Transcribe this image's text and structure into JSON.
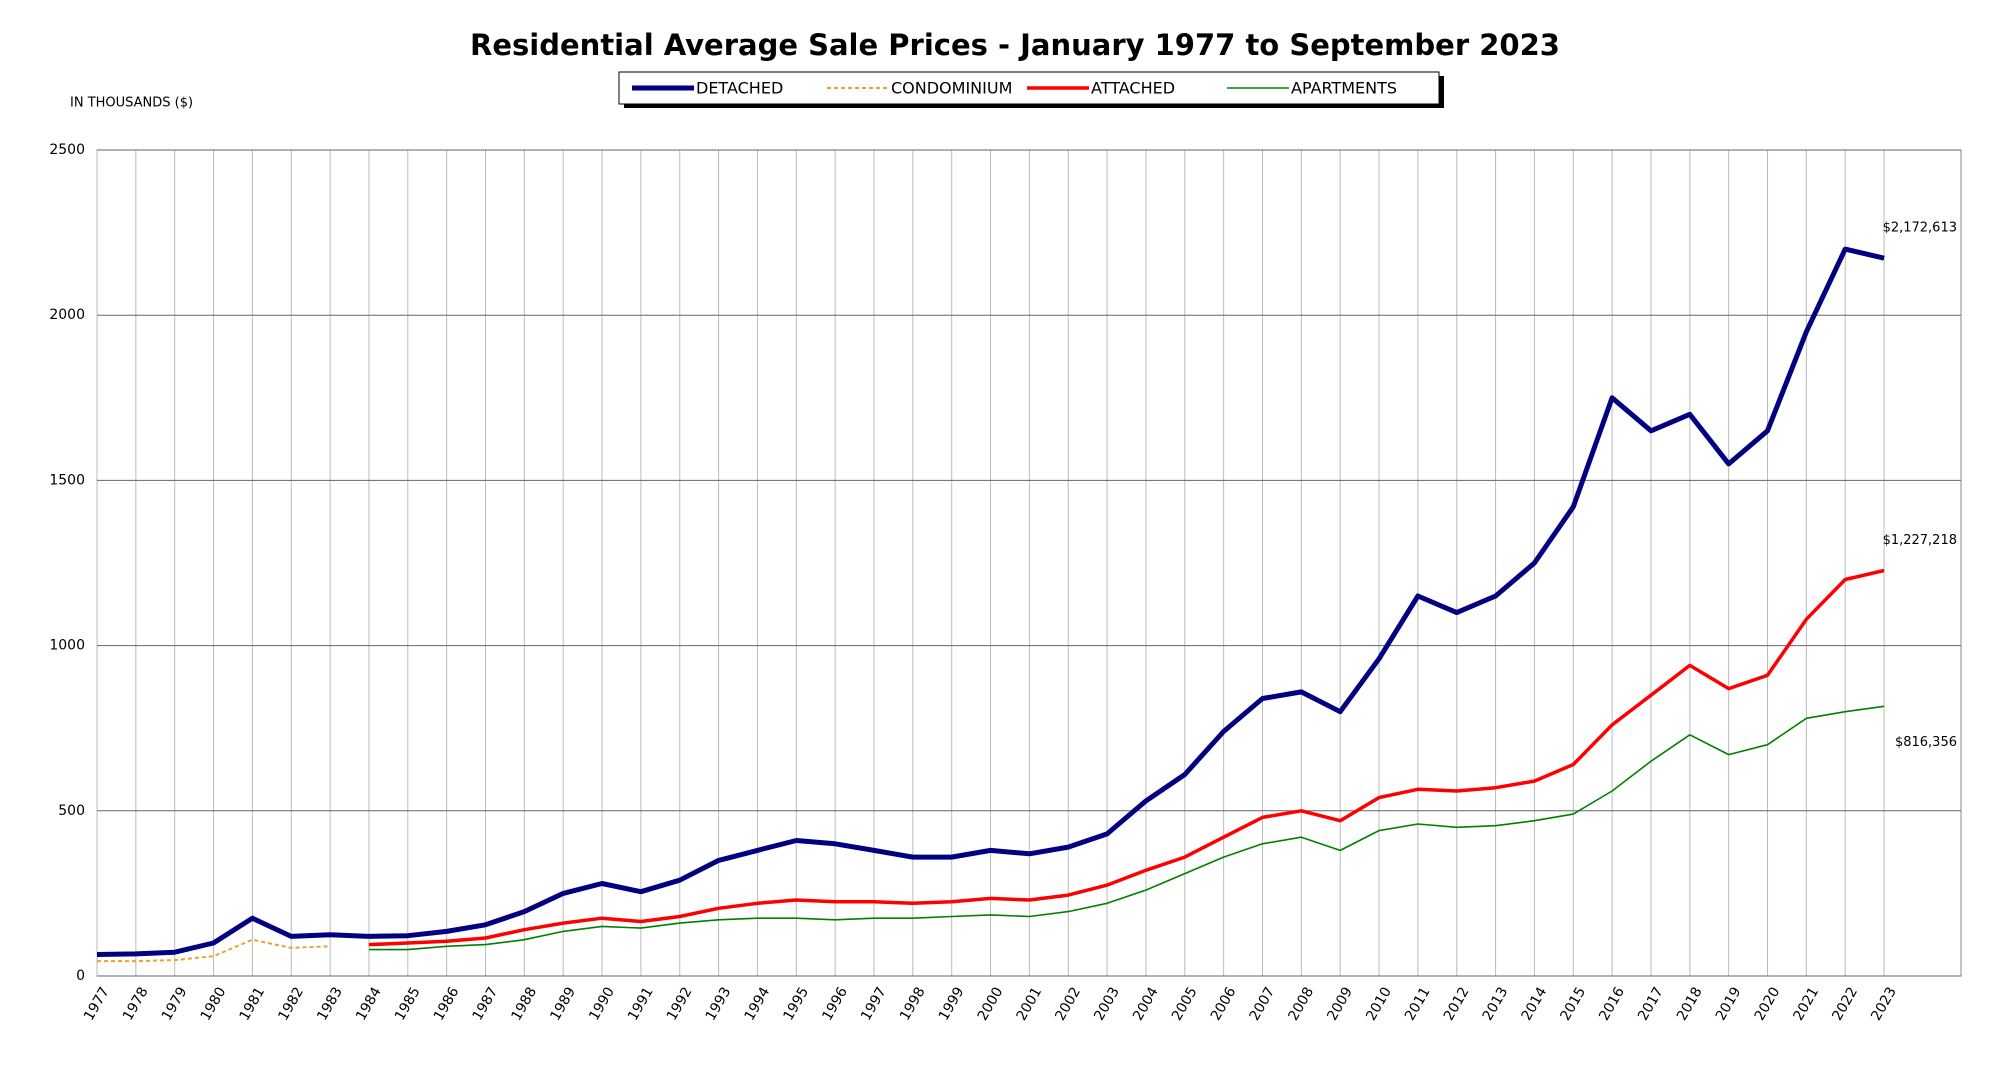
{
  "chart_data": {
    "type": "line",
    "title": "Residential Average Sale Prices  -  January 1977 to September 2023",
    "y_label": "IN THOUSANDS ($)",
    "categories": [
      "1977",
      "1978",
      "1979",
      "1980",
      "1981",
      "1982",
      "1983",
      "1984",
      "1985",
      "1986",
      "1987",
      "1988",
      "1989",
      "1990",
      "1991",
      "1992",
      "1993",
      "1994",
      "1995",
      "1996",
      "1997",
      "1998",
      "1999",
      "2000",
      "2001",
      "2002",
      "2003",
      "2004",
      "2005",
      "2006",
      "2007",
      "2008",
      "2009",
      "2010",
      "2011",
      "2012",
      "2013",
      "2014",
      "2015",
      "2016",
      "2017",
      "2018",
      "2019",
      "2020",
      "2021",
      "2022",
      "2023"
    ],
    "series": [
      {
        "name": "DETACHED",
        "color": "#000080",
        "values": [
          65,
          67,
          72,
          100,
          175,
          120,
          125,
          120,
          122,
          135,
          155,
          195,
          250,
          280,
          255,
          290,
          350,
          380,
          410,
          400,
          380,
          360,
          360,
          380,
          370,
          390,
          430,
          530,
          610,
          740,
          840,
          860,
          800,
          960,
          1150,
          1100,
          1150,
          1250,
          1420,
          1750,
          1650,
          1700,
          1550,
          1650,
          1950,
          2200,
          2172.613
        ],
        "value_labels": [
          null,
          null,
          null,
          null,
          null,
          null,
          null,
          null,
          null,
          null,
          null,
          null,
          null,
          null,
          null,
          null,
          null,
          null,
          null,
          null,
          null,
          null,
          null,
          null,
          null,
          null,
          null,
          null,
          null,
          null,
          null,
          null,
          null,
          null,
          null,
          null,
          null,
          null,
          null,
          null,
          null,
          null,
          null,
          null,
          null,
          null,
          "$2,172,613"
        ]
      },
      {
        "name": "CONDOMINIUM",
        "color": "#f0a030",
        "dashed": true,
        "values": [
          45,
          45,
          48,
          60,
          110,
          85,
          90,
          null,
          null,
          null,
          null,
          null,
          null,
          null,
          null,
          null,
          null,
          null,
          null,
          null,
          null,
          null,
          null,
          null,
          null,
          null,
          null,
          null,
          null,
          null,
          null,
          null,
          null,
          null,
          null,
          null,
          null,
          null,
          null,
          null,
          null,
          null,
          null,
          null,
          null,
          null,
          null
        ]
      },
      {
        "name": "ATTACHED",
        "color": "#ff0000",
        "values": [
          null,
          null,
          null,
          null,
          null,
          null,
          null,
          95,
          100,
          105,
          115,
          140,
          160,
          175,
          165,
          180,
          205,
          220,
          230,
          225,
          225,
          220,
          225,
          235,
          230,
          245,
          275,
          320,
          360,
          420,
          480,
          500,
          470,
          540,
          565,
          560,
          570,
          590,
          640,
          760,
          850,
          940,
          870,
          910,
          1080,
          1200,
          1227.218
        ],
        "value_labels": [
          null,
          null,
          null,
          null,
          null,
          null,
          null,
          null,
          null,
          null,
          null,
          null,
          null,
          null,
          null,
          null,
          null,
          null,
          null,
          null,
          null,
          null,
          null,
          null,
          null,
          null,
          null,
          null,
          null,
          null,
          null,
          null,
          null,
          null,
          null,
          null,
          null,
          null,
          null,
          null,
          null,
          null,
          null,
          null,
          null,
          null,
          "$1,227,218"
        ]
      },
      {
        "name": "APARTMENTS",
        "color": "#008000",
        "values": [
          null,
          null,
          null,
          null,
          null,
          null,
          null,
          80,
          80,
          90,
          95,
          110,
          135,
          150,
          145,
          160,
          170,
          175,
          175,
          170,
          175,
          175,
          180,
          185,
          180,
          195,
          220,
          260,
          310,
          360,
          400,
          420,
          380,
          440,
          460,
          450,
          455,
          470,
          490,
          560,
          650,
          730,
          670,
          700,
          780,
          800,
          816.356
        ],
        "value_labels": [
          null,
          null,
          null,
          null,
          null,
          null,
          null,
          null,
          null,
          null,
          null,
          null,
          null,
          null,
          null,
          null,
          null,
          null,
          null,
          null,
          null,
          null,
          null,
          null,
          null,
          null,
          null,
          null,
          null,
          null,
          null,
          null,
          null,
          null,
          null,
          null,
          null,
          null,
          null,
          null,
          null,
          null,
          null,
          null,
          null,
          null,
          "$816,356"
        ]
      }
    ],
    "ylim": [
      0,
      2500
    ],
    "yticks": [
      0,
      500,
      1000,
      1500,
      2000,
      2500
    ],
    "grid": true,
    "legend": "top"
  }
}
